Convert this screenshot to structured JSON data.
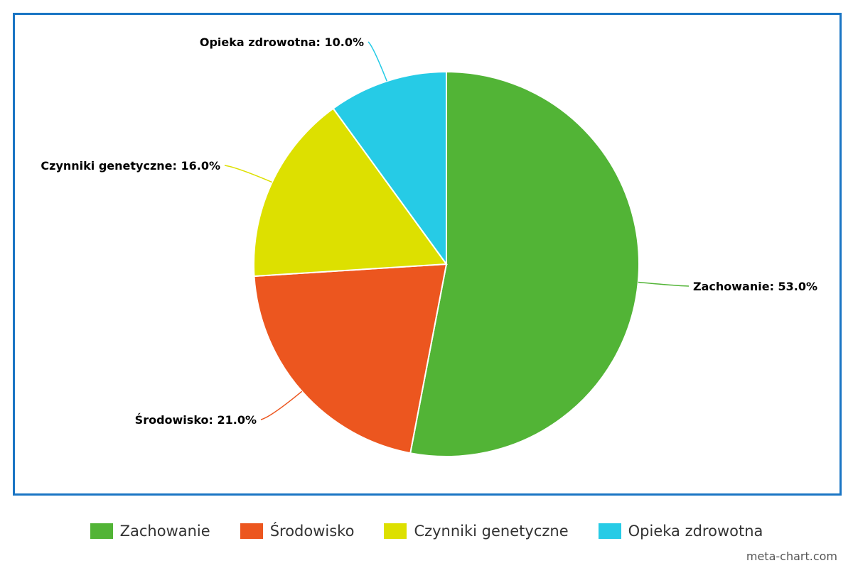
{
  "chart_data": {
    "type": "pie",
    "title": "",
    "slices": [
      {
        "label": "Zachowanie",
        "value": 53.0,
        "display": "Zachowanie: 53.0%",
        "color": "#52b436"
      },
      {
        "label": "Środowisko",
        "value": 21.0,
        "display": "Środowisko: 21.0%",
        "color": "#ec561f"
      },
      {
        "label": "Czynniki genetyczne",
        "value": 16.0,
        "display": "Czynniki genetyczne: 16.0%",
        "color": "#dde000"
      },
      {
        "label": "Opieka zdrowotna",
        "value": 10.0,
        "display": "Opieka zdrowotna: 10.0%",
        "color": "#26cbe6"
      }
    ],
    "legend_placement": "bottom",
    "border_color": "#1a75c4"
  },
  "legend": {
    "items": [
      "Zachowanie",
      "Środowisko",
      "Czynniki genetyczne",
      "Opieka zdrowotna"
    ]
  },
  "watermark": "meta-chart.com"
}
